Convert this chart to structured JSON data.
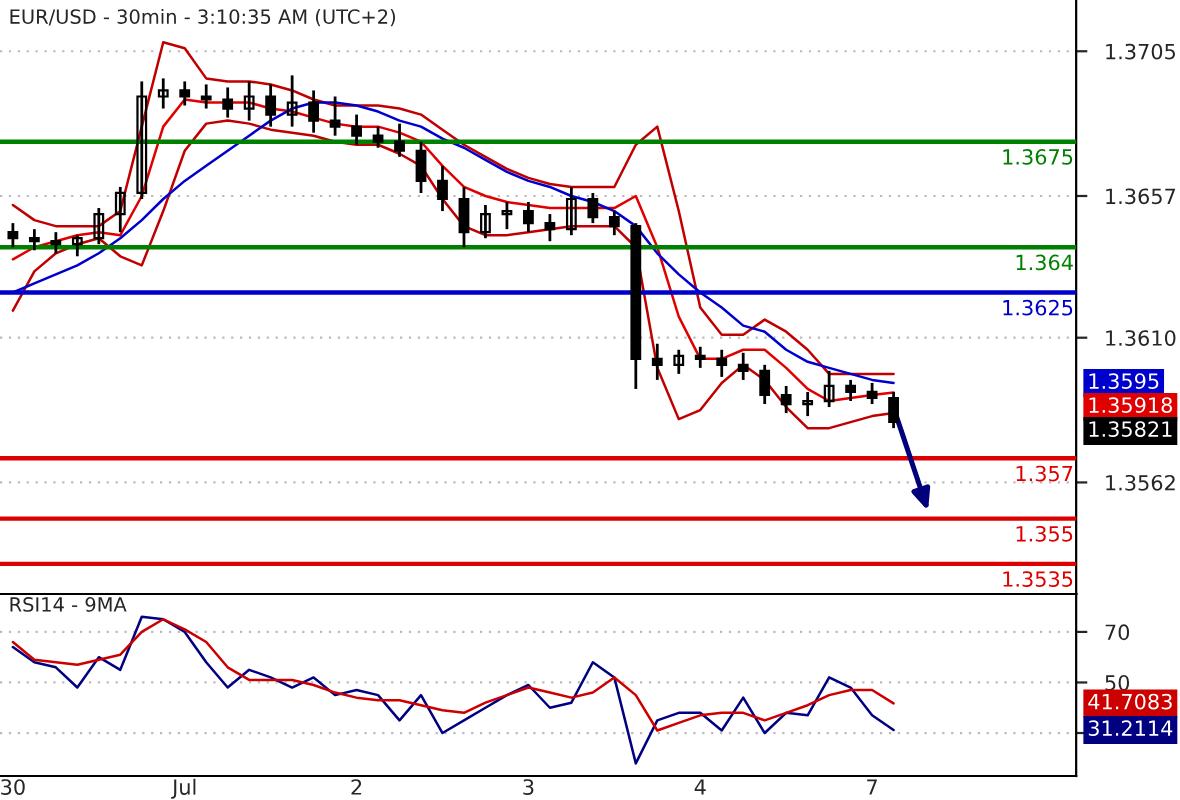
{
  "chart_data": [
    {
      "type": "candlestick",
      "title": "EUR/USD - 30min - 3:10:35 AM (UTC+2)",
      "categories": [
        null,
        null,
        null,
        null,
        null,
        null,
        null,
        null,
        null,
        null,
        null,
        null,
        null,
        null,
        null,
        null,
        null,
        null,
        null,
        null,
        null,
        null,
        null,
        null,
        null,
        null,
        null,
        null,
        null,
        null,
        null,
        null,
        null,
        null,
        null,
        null,
        null,
        null,
        null,
        null,
        null,
        null,
        null,
        null,
        null,
        null,
        null,
        null,
        null,
        null
      ],
      "ohlc": [
        [
          1.3645,
          1.3648,
          1.364,
          1.3643
        ],
        [
          1.3643,
          1.3646,
          1.3639,
          1.3642
        ],
        [
          1.3642,
          1.3645,
          1.3638,
          1.3641
        ],
        [
          1.3641,
          1.3644,
          1.3637,
          1.3643
        ],
        [
          1.3643,
          1.3653,
          1.3641,
          1.3651
        ],
        [
          1.3651,
          1.366,
          1.3645,
          1.3658
        ],
        [
          1.3658,
          1.3695,
          1.3656,
          1.369
        ],
        [
          1.369,
          1.3696,
          1.3686,
          1.3692
        ],
        [
          1.3692,
          1.3695,
          1.3687,
          1.369
        ],
        [
          1.369,
          1.3694,
          1.3686,
          1.3689
        ],
        [
          1.3689,
          1.3693,
          1.3683,
          1.3686
        ],
        [
          1.3686,
          1.3695,
          1.3682,
          1.369
        ],
        [
          1.369,
          1.3694,
          1.368,
          1.3684
        ],
        [
          1.3684,
          1.3697,
          1.368,
          1.3688
        ],
        [
          1.3688,
          1.3692,
          1.3678,
          1.3682
        ],
        [
          1.3682,
          1.369,
          1.3677,
          1.368
        ],
        [
          1.368,
          1.3684,
          1.3674,
          1.3677
        ],
        [
          1.3677,
          1.368,
          1.3673,
          1.3675
        ],
        [
          1.3675,
          1.3681,
          1.367,
          1.3672
        ],
        [
          1.3672,
          1.3675,
          1.3658,
          1.3662
        ],
        [
          1.3662,
          1.3667,
          1.3652,
          1.3656
        ],
        [
          1.3656,
          1.366,
          1.364,
          1.3645
        ],
        [
          1.3645,
          1.3654,
          1.3643,
          1.3651
        ],
        [
          1.3651,
          1.3655,
          1.3646,
          1.3652
        ],
        [
          1.3652,
          1.3655,
          1.3645,
          1.3648
        ],
        [
          1.3648,
          1.3651,
          1.3642,
          1.3646
        ],
        [
          1.3646,
          1.366,
          1.3644,
          1.3656
        ],
        [
          1.3656,
          1.3658,
          1.3648,
          1.365
        ],
        [
          1.365,
          1.3652,
          1.3644,
          1.3647
        ],
        [
          1.3647,
          1.3648,
          1.3593,
          1.3603
        ],
        [
          1.3603,
          1.3608,
          1.3596,
          1.3601
        ],
        [
          1.3601,
          1.3606,
          1.3598,
          1.3604
        ],
        [
          1.3604,
          1.3607,
          1.36,
          1.3603
        ],
        [
          1.3603,
          1.3606,
          1.3597,
          1.3601
        ],
        [
          1.3601,
          1.3605,
          1.3596,
          1.3599
        ],
        [
          1.3599,
          1.3601,
          1.3588,
          1.3591
        ],
        [
          1.3591,
          1.3594,
          1.3585,
          1.3588
        ],
        [
          1.3588,
          1.3592,
          1.3584,
          1.3589
        ],
        [
          1.3589,
          1.3599,
          1.3587,
          1.3594
        ],
        [
          1.3594,
          1.3596,
          1.3589,
          1.3592
        ],
        [
          1.3592,
          1.3595,
          1.3588,
          1.359
        ],
        [
          1.359,
          1.3592,
          1.358,
          1.35821
        ],
        null,
        null,
        null,
        null,
        null,
        null,
        null,
        null
      ],
      "annotations": [
        "1.3595",
        "1.35918",
        "1.35821"
      ],
      "series": [
        {
          "type": "line",
          "color": "#c00000",
          "values": [
            1.3654,
            1.3649,
            1.3647,
            1.3647,
            1.3647,
            1.3652,
            1.368,
            1.3708,
            1.3706,
            1.3696,
            1.3695,
            1.3695,
            1.3694,
            1.3692,
            1.3689,
            1.3687,
            1.3687,
            1.3687,
            1.3686,
            1.3684,
            1.3679,
            1.3674,
            1.367,
            1.3666,
            1.3663,
            1.3661,
            1.366,
            1.366,
            1.366,
            1.3674,
            1.368,
            1.3652,
            1.362,
            1.3611,
            1.3611,
            1.3616,
            1.3612,
            1.3606,
            1.3598,
            1.3598,
            1.3598,
            1.3598,
            null,
            null,
            null,
            null,
            null,
            null,
            null,
            null
          ]
        },
        {
          "type": "line",
          "color": "#e00000",
          "values": [
            1.3636,
            1.364,
            1.3642,
            1.3644,
            1.3645,
            1.3644,
            1.3657,
            1.368,
            1.3689,
            1.3688,
            1.3688,
            1.3688,
            1.3686,
            1.3685,
            1.3683,
            1.3681,
            1.368,
            1.368,
            1.3678,
            1.3675,
            1.3667,
            1.366,
            1.3657,
            1.3655,
            1.3654,
            1.3653,
            1.3653,
            1.3653,
            1.3653,
            1.3657,
            1.364,
            1.3617,
            1.3603,
            1.3603,
            1.3606,
            1.3606,
            1.36,
            1.3593,
            1.3589,
            1.359,
            1.3591,
            1.35918,
            null,
            null,
            null,
            null,
            null,
            null,
            null,
            null
          ]
        },
        {
          "type": "line",
          "color": "#c00000",
          "values": [
            1.3619,
            1.3632,
            1.3638,
            1.3641,
            1.3643,
            1.3637,
            1.3634,
            1.3652,
            1.3672,
            1.3681,
            1.3682,
            1.3681,
            1.3679,
            1.3678,
            1.3677,
            1.3675,
            1.3674,
            1.3674,
            1.3671,
            1.3667,
            1.3656,
            1.3647,
            1.3644,
            1.3644,
            1.3645,
            1.3646,
            1.3647,
            1.3647,
            1.3647,
            1.364,
            1.36,
            1.3583,
            1.3586,
            1.3595,
            1.3601,
            1.3596,
            1.3587,
            1.358,
            1.358,
            1.3582,
            1.3584,
            1.3585,
            null,
            null,
            null,
            null,
            null,
            null,
            null,
            null
          ]
        },
        {
          "type": "line",
          "color": "#0000cc",
          "values": [
            1.3625,
            1.3628,
            1.3631,
            1.3634,
            1.3638,
            1.3643,
            1.3649,
            1.3656,
            1.3662,
            1.3667,
            1.3672,
            1.3677,
            1.3682,
            1.3686,
            1.3688,
            1.3688,
            1.3687,
            1.3685,
            1.3682,
            1.368,
            1.3676,
            1.3673,
            1.3669,
            1.3665,
            1.3662,
            1.366,
            1.3657,
            1.3655,
            1.3652,
            1.3647,
            1.3638,
            1.3631,
            1.3625,
            1.362,
            1.3614,
            1.3612,
            1.3606,
            1.3602,
            1.36,
            1.3598,
            1.3596,
            1.3595,
            null,
            null,
            null,
            null,
            null,
            null,
            null,
            null
          ]
        }
      ],
      "ref_lines": [
        {
          "axis": "y",
          "value": 1.3675,
          "label": "1.3675",
          "color": "#008000"
        },
        {
          "axis": "y",
          "value": 1.364,
          "label": "1.364",
          "color": "#008000"
        },
        {
          "axis": "y",
          "value": 1.3625,
          "label": "1.3625",
          "color": "#0000cc"
        },
        {
          "axis": "y",
          "value": 1.357,
          "label": "1.357",
          "color": "#dd0000"
        },
        {
          "axis": "y",
          "value": 1.355,
          "label": "1.355",
          "color": "#dd0000"
        },
        {
          "axis": "y",
          "value": 1.3535,
          "label": "1.3535",
          "color": "#dd0000"
        }
      ],
      "ylim": [
        1.3525,
        1.3722
      ],
      "yticks": [
        {
          "value": 1.3705,
          "label": "1.3705"
        },
        {
          "value": 1.3657,
          "label": "1.3657"
        },
        {
          "value": 1.361,
          "label": "1.3610"
        },
        {
          "value": 1.3562,
          "label": "1.3562"
        }
      ],
      "grid": "y"
    },
    {
      "type": "line",
      "title": "RSI14 - 9MA",
      "categories": [
        "30",
        null,
        null,
        null,
        null,
        null,
        null,
        null,
        "Jul",
        null,
        null,
        null,
        null,
        null,
        null,
        null,
        "2",
        null,
        null,
        null,
        null,
        null,
        null,
        null,
        "3",
        null,
        null,
        null,
        null,
        null,
        null,
        null,
        "4",
        null,
        null,
        null,
        null,
        null,
        null,
        null,
        "7",
        null,
        null,
        null,
        null,
        null,
        null,
        null,
        null,
        null
      ],
      "series": [
        {
          "color": "#000080",
          "values": [
            64,
            58,
            56,
            48,
            60,
            55,
            76,
            75,
            70,
            58,
            48,
            55,
            52,
            48,
            52,
            45,
            47,
            45,
            35,
            45,
            30,
            35,
            40,
            45,
            49,
            40,
            42,
            58,
            52,
            18,
            35,
            38,
            38,
            31,
            44,
            30,
            38,
            37,
            52,
            48,
            37,
            31.2114,
            null,
            null,
            null,
            null,
            null,
            null,
            null,
            null
          ]
        },
        {
          "color": "#cc0000",
          "values": [
            66,
            59,
            58,
            57,
            59,
            61,
            70,
            75,
            71,
            66,
            56,
            51,
            51,
            51,
            49,
            46,
            44,
            43,
            43,
            41,
            39,
            38,
            42,
            45,
            48,
            46,
            44,
            46,
            52,
            45,
            31,
            34,
            37,
            38,
            38,
            35,
            38,
            41,
            45,
            47,
            47,
            41.7083,
            null,
            null,
            null,
            null,
            null,
            null,
            null,
            null
          ]
        }
      ],
      "annotations": [
        "41.7083",
        "31.2114"
      ],
      "ylim": [
        13,
        85
      ],
      "yticks": [
        70,
        50,
        {
          "value": 30,
          "label": null
        }
      ],
      "grid": "y"
    }
  ]
}
